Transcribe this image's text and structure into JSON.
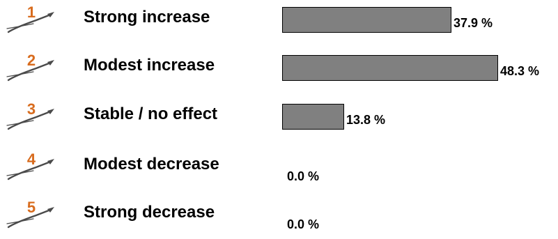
{
  "chart_data": {
    "type": "bar",
    "orientation": "horizontal",
    "categories": [
      {
        "rank": "1",
        "label": "Strong increase"
      },
      {
        "rank": "2",
        "label": "Modest increase"
      },
      {
        "rank": "3",
        "label": "Stable / no effect"
      },
      {
        "rank": "4",
        "label": "Modest decrease"
      },
      {
        "rank": "5",
        "label": "Strong decrease"
      }
    ],
    "values": [
      37.9,
      48.3,
      13.8,
      0.0,
      0.0
    ],
    "value_labels": [
      "37.9 %",
      "48.3 %",
      "13.8 %",
      "0.0 %",
      "0.0 %"
    ],
    "unit": "%",
    "xlim": [
      0,
      100
    ],
    "grid": false,
    "legend": "none"
  },
  "colors": {
    "bar_fill": "#808080",
    "bar_border": "#000000",
    "rank_number": "#d86c1e",
    "pen_icon": "#4a4a4a"
  },
  "icons": {
    "rank_badge": "pen-swoosh-icon"
  }
}
